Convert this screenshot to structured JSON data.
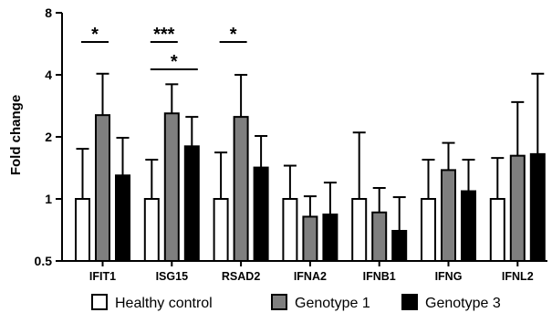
{
  "chart_data": {
    "type": "bar",
    "title": "",
    "ylabel": "Fold change",
    "xlabel": "",
    "y_scale": "log2",
    "ylim": [
      0.5,
      8
    ],
    "y_ticks": [
      0.5,
      1,
      2,
      4,
      8
    ],
    "y_tick_labels": [
      "0.5",
      "1",
      "2",
      "4",
      "8"
    ],
    "grid": false,
    "legend_position": "bottom",
    "categories": [
      "IFIT1",
      "ISG15",
      "RSAD2",
      "IFNA2",
      "IFNB1",
      "IFNG",
      "IFNL2"
    ],
    "series": [
      {
        "name": "Healthy control",
        "color": "#ffffff",
        "values": [
          1,
          1,
          1,
          1,
          1,
          1,
          1
        ],
        "error_upper": [
          1.75,
          1.55,
          1.68,
          1.45,
          2.1,
          1.55,
          1.58
        ]
      },
      {
        "name": "Genotype 1",
        "color": "#7f7f7f",
        "values": [
          2.55,
          2.6,
          2.5,
          0.82,
          0.86,
          1.38,
          1.62
        ],
        "error_upper": [
          4.05,
          3.6,
          4.0,
          1.03,
          1.13,
          1.87,
          2.95
        ]
      },
      {
        "name": "Genotype 3",
        "color": "#000000",
        "values": [
          1.3,
          1.8,
          1.42,
          0.84,
          0.7,
          1.09,
          1.65
        ],
        "error_upper": [
          1.98,
          2.5,
          2.02,
          1.2,
          1.02,
          1.55,
          4.05
        ]
      }
    ],
    "annotations": [
      {
        "text": "*",
        "category_from": "IFIT1",
        "series_from": 0,
        "series_to": 1,
        "level": 0
      },
      {
        "text": "***",
        "category_from": "ISG15",
        "series_from": 0,
        "series_to": 1,
        "level": 0
      },
      {
        "text": "*",
        "category_from": "ISG15",
        "series_from": 0,
        "series_to": 2,
        "level": 1
      },
      {
        "text": "*",
        "category_from": "RSAD2",
        "series_from": 0,
        "series_to": 1,
        "level": 0
      }
    ]
  }
}
